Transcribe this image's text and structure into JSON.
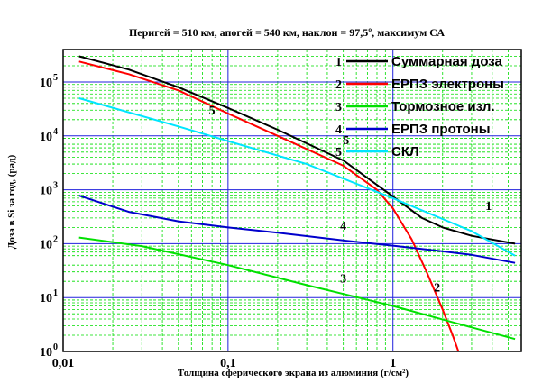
{
  "chart_data": {
    "type": "line",
    "title": "Перигей = 510 км, апогей = 540 км, наклон = 97,5º, максимум СА",
    "xlabel": "Толщина сферического экрана из алюминия (г/см²)",
    "ylabel": "Доза в Si за год, (рад)",
    "x_scale": "log",
    "y_scale": "log",
    "xlim": [
      0.01,
      6
    ],
    "ylim": [
      1,
      400000
    ],
    "x_ticks": [
      {
        "value": 0.01,
        "label": "0,01"
      },
      {
        "value": 0.1,
        "label": "0,1"
      },
      {
        "value": 1,
        "label": "1"
      }
    ],
    "y_ticks": [
      {
        "value": 1,
        "base": "10",
        "exp": "0"
      },
      {
        "value": 10,
        "base": "10",
        "exp": "1"
      },
      {
        "value": 100,
        "base": "10",
        "exp": "2"
      },
      {
        "value": 1000,
        "base": "10",
        "exp": "3"
      },
      {
        "value": 10000,
        "base": "10",
        "exp": "4"
      },
      {
        "value": 100000,
        "base": "10",
        "exp": "5"
      }
    ],
    "grid": true,
    "legend_position": "top-right",
    "series": [
      {
        "id": "1",
        "name": "Суммарная доза",
        "color": "#000000",
        "points": [
          [
            0.0125,
            300000
          ],
          [
            0.025,
            170000
          ],
          [
            0.05,
            80000
          ],
          [
            0.1,
            33000
          ],
          [
            0.2,
            13000
          ],
          [
            0.5,
            3500
          ],
          [
            1,
            750
          ],
          [
            1.5,
            300
          ],
          [
            2,
            200
          ],
          [
            3,
            140
          ],
          [
            5.5,
            100
          ]
        ]
      },
      {
        "id": "2",
        "name": "ЕРПЗ электроны",
        "color": "#ff0000",
        "points": [
          [
            0.0125,
            240000
          ],
          [
            0.025,
            140000
          ],
          [
            0.05,
            70000
          ],
          [
            0.1,
            26000
          ],
          [
            0.2,
            10000
          ],
          [
            0.5,
            2800
          ],
          [
            0.8,
            1000
          ],
          [
            1,
            450
          ],
          [
            1.3,
            120
          ],
          [
            1.6,
            30
          ],
          [
            2,
            6
          ],
          [
            2.3,
            2
          ],
          [
            2.6,
            0.7
          ]
        ]
      },
      {
        "id": "3",
        "name": "Тормозное изл.",
        "color": "#00e000",
        "points": [
          [
            0.0125,
            130
          ],
          [
            0.03,
            90
          ],
          [
            0.1,
            40
          ],
          [
            0.3,
            17
          ],
          [
            1,
            7
          ],
          [
            3,
            2.8
          ],
          [
            5.5,
            1.7
          ]
        ]
      },
      {
        "id": "4",
        "name": "ЕРПЗ протоны",
        "color": "#0000cc",
        "points": [
          [
            0.0125,
            780
          ],
          [
            0.025,
            390
          ],
          [
            0.05,
            260
          ],
          [
            0.1,
            200
          ],
          [
            0.2,
            160
          ],
          [
            0.5,
            115
          ],
          [
            1,
            92
          ],
          [
            2,
            72
          ],
          [
            3,
            62
          ],
          [
            5.5,
            44
          ]
        ]
      },
      {
        "id": "5",
        "name": "СКЛ",
        "color": "#00e5ff",
        "points": [
          [
            0.0125,
            50000
          ],
          [
            0.05,
            15000
          ],
          [
            0.1,
            8000
          ],
          [
            0.3,
            3000
          ],
          [
            1,
            700
          ],
          [
            3,
            170
          ],
          [
            5.5,
            60
          ]
        ]
      }
    ],
    "annotations": [
      {
        "text": "1",
        "x": 3.8,
        "y": 420
      },
      {
        "text": "2",
        "x": 1.85,
        "y": 13
      },
      {
        "text": "3",
        "x": 0.5,
        "y": 19
      },
      {
        "text": "4",
        "x": 0.5,
        "y": 180
      },
      {
        "text": "5",
        "x": 0.08,
        "y": 25000
      },
      {
        "text": "5",
        "x": 0.52,
        "y": 7000
      }
    ]
  }
}
